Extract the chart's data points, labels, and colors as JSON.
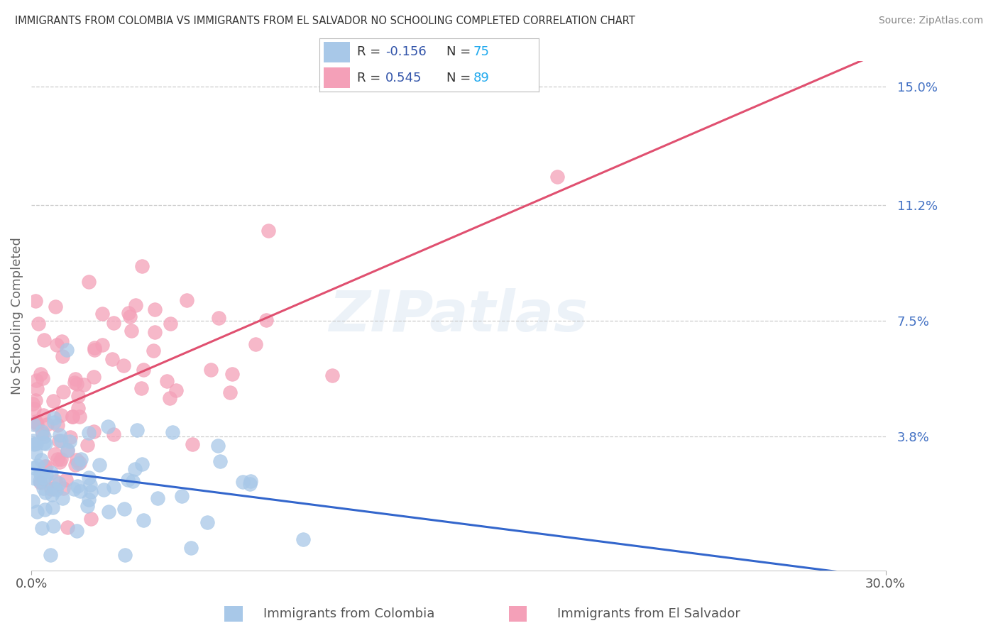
{
  "title": "IMMIGRANTS FROM COLOMBIA VS IMMIGRANTS FROM EL SALVADOR NO SCHOOLING COMPLETED CORRELATION CHART",
  "source": "Source: ZipAtlas.com",
  "xlabel_colombia": "Immigrants from Colombia",
  "xlabel_elsalvador": "Immigrants from El Salvador",
  "ylabel": "No Schooling Completed",
  "xlim": [
    0.0,
    0.3
  ],
  "ylim": [
    -0.005,
    0.158
  ],
  "xticks": [
    0.0,
    0.3
  ],
  "xtick_labels": [
    "0.0%",
    "30.0%"
  ],
  "ytick_labels_right": [
    "15.0%",
    "11.2%",
    "7.5%",
    "3.8%"
  ],
  "ytick_vals_right": [
    0.15,
    0.112,
    0.075,
    0.038
  ],
  "r_colombia": -0.156,
  "n_colombia": 75,
  "r_elsalvador": 0.545,
  "n_elsalvador": 89,
  "color_colombia": "#a8c8e8",
  "color_elsalvador": "#f4a0b8",
  "trendline_colombia": "#3366cc",
  "trendline_elsalvador": "#e05070",
  "watermark": "ZIPatlas",
  "legend_r_color": "#3355aa",
  "legend_n_color": "#22aaee"
}
